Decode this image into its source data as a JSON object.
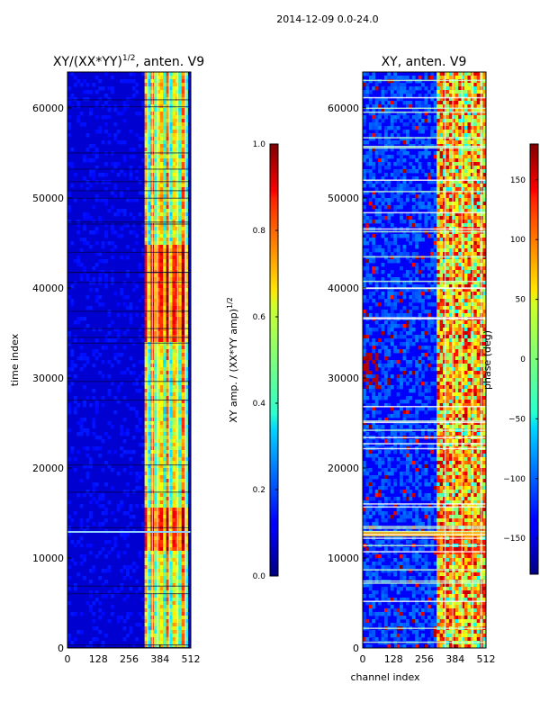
{
  "suptitle": "2014-12-09 0.0-24.0",
  "chart_data": [
    {
      "type": "heatmap",
      "title": "XY/(XX*YY)",
      "title_exp": "1/2",
      "title_suffix": ", anten. V9",
      "xlabel": "",
      "ylabel": "time index",
      "xlim": [
        0,
        512
      ],
      "ylim": [
        0,
        64000
      ],
      "xticks": [
        "0",
        "128",
        "256",
        "384",
        "512"
      ],
      "yticks": [
        "0",
        "10000",
        "20000",
        "30000",
        "40000",
        "50000",
        "60000"
      ],
      "colorbar": {
        "label": "XY amp. / (XX*YY amp)",
        "label_exp": "1/2",
        "range": [
          0.0,
          1.0
        ],
        "ticks": [
          "0.0",
          "0.2",
          "0.4",
          "0.6",
          "0.8",
          "1.0"
        ],
        "colormap": "jet"
      },
      "description_bands": [
        {
          "channel_range": [
            0,
            320
          ],
          "level": 0.08
        },
        {
          "channel_range": [
            320,
            500
          ],
          "level": 0.55
        },
        {
          "time_range": [
            11000,
            16000
          ],
          "channel_range": [
            320,
            500
          ],
          "level": 0.9
        },
        {
          "time_range": [
            34000,
            45000
          ],
          "channel_range": [
            320,
            500
          ],
          "level": 0.85
        }
      ]
    },
    {
      "type": "heatmap",
      "title": "XY, anten. V9",
      "xlabel": "channel index",
      "ylabel": "",
      "xlim": [
        0,
        512
      ],
      "ylim": [
        0,
        64000
      ],
      "xticks": [
        "0",
        "128",
        "256",
        "384",
        "512"
      ],
      "yticks": [
        "0",
        "10000",
        "20000",
        "30000",
        "40000",
        "50000",
        "60000"
      ],
      "colorbar": {
        "label": "phase (deg)",
        "range": [
          -180,
          180
        ],
        "ticks": [
          "−150",
          "−100",
          "−50",
          "0",
          "50",
          "100",
          "150"
        ],
        "colormap": "jet"
      }
    }
  ]
}
